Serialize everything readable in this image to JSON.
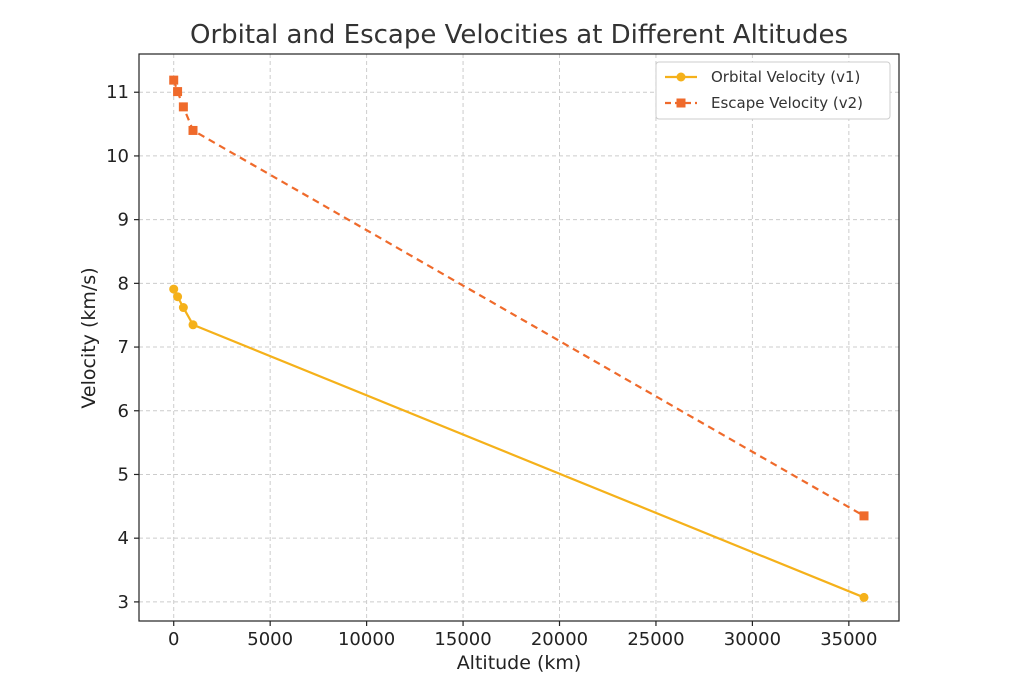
{
  "chart_data": {
    "type": "line",
    "title": "Orbital and Escape Velocities at Different Altitudes",
    "xlabel": "Altitude (km)",
    "ylabel": "Velocity (km/s)",
    "xlim": [
      -1800,
      37600
    ],
    "ylim": [
      2.7,
      11.6
    ],
    "xticks": [
      0,
      5000,
      10000,
      15000,
      20000,
      25000,
      30000,
      35000
    ],
    "yticks": [
      3,
      4,
      5,
      6,
      7,
      8,
      9,
      10,
      11
    ],
    "grid": true,
    "legend_position": "top-right",
    "series": [
      {
        "name": "Orbital Velocity (v1)",
        "color": "#f5b11a",
        "line_style": "solid",
        "marker": "circle",
        "x": [
          0,
          200,
          500,
          1000,
          35786
        ],
        "y": [
          7.91,
          7.79,
          7.62,
          7.35,
          3.07
        ]
      },
      {
        "name": "Escape Velocity (v2)",
        "color": "#ef6a2b",
        "line_style": "dashed",
        "marker": "square",
        "x": [
          0,
          200,
          500,
          1000,
          35786
        ],
        "y": [
          11.19,
          11.01,
          10.77,
          10.4,
          4.35
        ]
      }
    ]
  }
}
